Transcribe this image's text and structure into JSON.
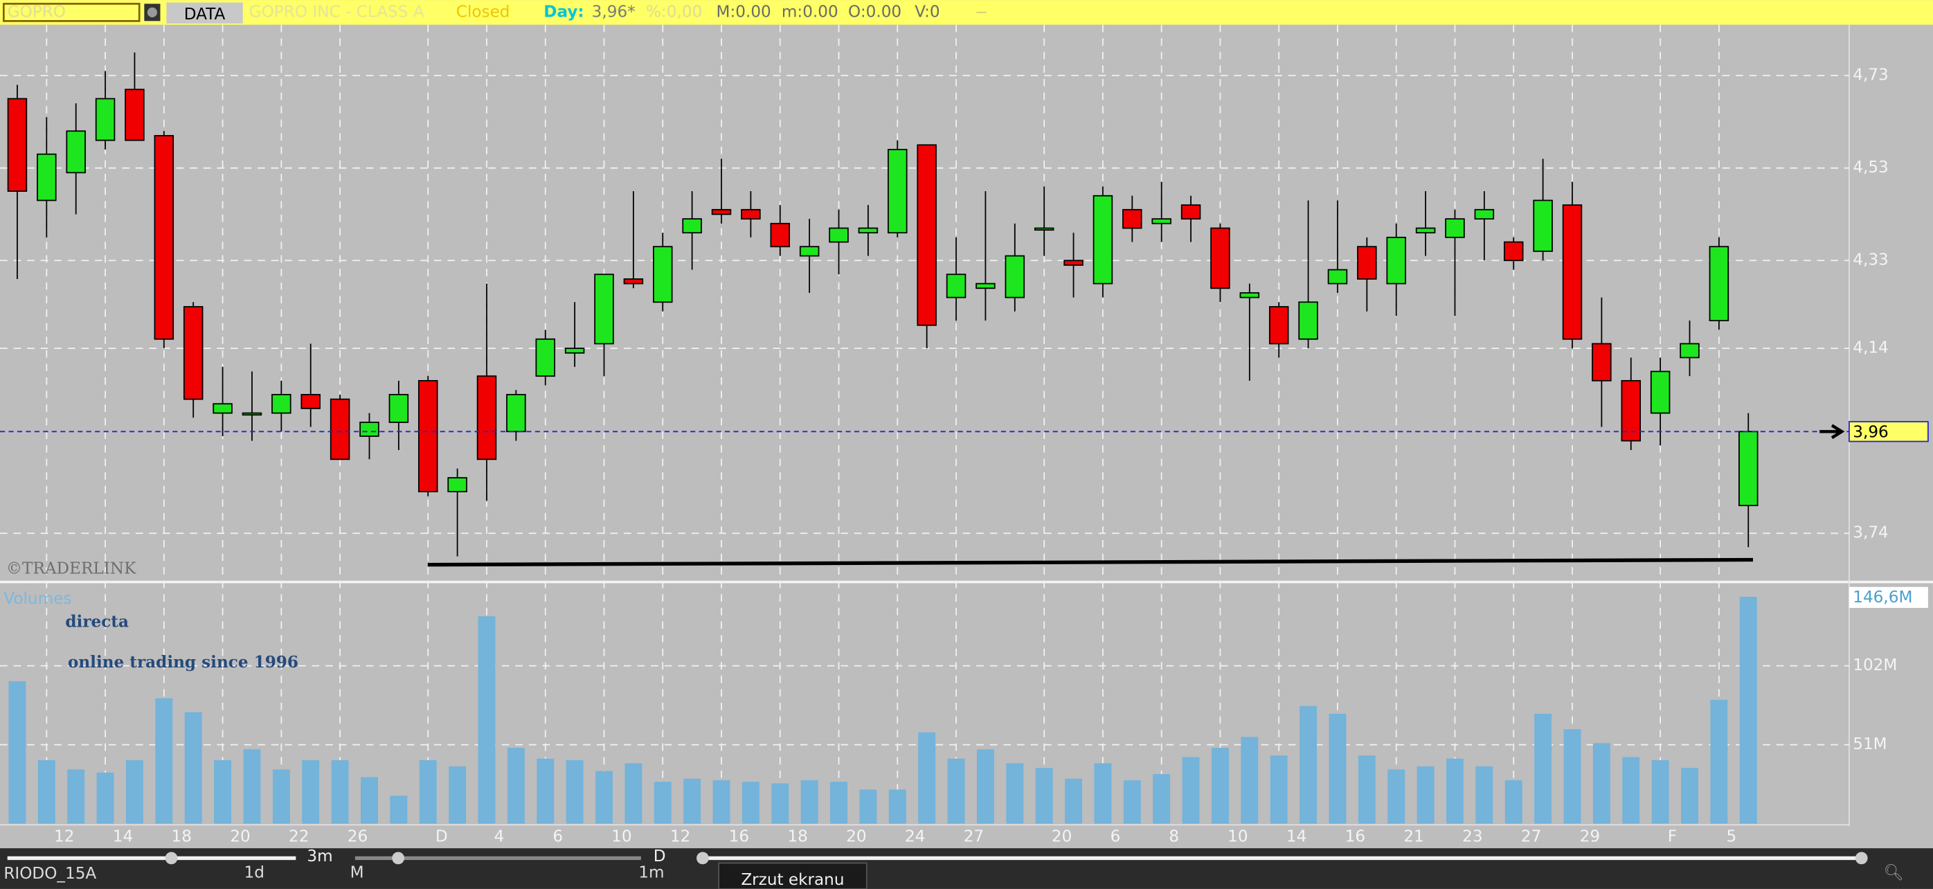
{
  "toolbar": {
    "symbol": "GOPRO",
    "button": "DATA",
    "name": "GOPRO INC - CLASS A",
    "status": "Closed",
    "day_label": "Day:",
    "price": "3,96*",
    "change": "%:0,00",
    "max": "M:0.00",
    "min": "m:0.00",
    "open": "O:0.00",
    "volume": "V:0"
  },
  "watermarks": {
    "traderlink": "©TRADERLINK",
    "brand": "directa",
    "slogan": "online trading since 1996"
  },
  "chart_data": [
    {
      "type": "candlestick",
      "open": [
        4.68,
        4.46,
        4.52,
        4.59,
        4.7,
        4.6,
        4.23,
        4.0,
        4.0,
        4.0,
        4.04,
        4.03,
        3.95,
        3.98,
        4.07,
        3.83,
        4.08,
        3.96,
        4.08,
        4.13,
        4.15,
        4.29,
        4.24,
        4.39,
        4.44,
        4.44,
        4.41,
        4.34,
        4.37,
        4.39,
        4.39,
        4.58,
        4.25,
        4.27,
        4.25,
        4.4,
        4.33,
        4.28,
        4.44,
        4.41,
        4.45,
        4.4,
        4.25,
        4.23,
        4.16,
        4.28,
        4.36,
        4.28,
        4.39,
        4.38,
        4.42,
        4.37,
        4.35,
        4.45,
        4.15,
        4.07,
        4.0,
        4.12,
        4.2,
        3.8
      ],
      "high": [
        4.71,
        4.64,
        4.67,
        4.74,
        4.78,
        4.61,
        4.24,
        4.1,
        4.09,
        4.07,
        4.15,
        4.04,
        4.0,
        4.07,
        4.08,
        3.88,
        4.28,
        4.05,
        4.18,
        4.24,
        4.3,
        4.48,
        4.39,
        4.48,
        4.55,
        4.48,
        4.45,
        4.42,
        4.44,
        4.45,
        4.59,
        4.58,
        4.38,
        4.48,
        4.41,
        4.49,
        4.39,
        4.49,
        4.47,
        4.5,
        4.47,
        4.41,
        4.28,
        4.24,
        4.46,
        4.46,
        4.38,
        4.41,
        4.48,
        4.44,
        4.48,
        4.38,
        4.55,
        4.5,
        4.25,
        4.12,
        4.12,
        4.2,
        4.38,
        4.0
      ],
      "low": [
        4.29,
        4.38,
        4.43,
        4.57,
        4.59,
        4.14,
        3.99,
        3.95,
        3.94,
        3.96,
        3.97,
        3.9,
        3.9,
        3.92,
        3.82,
        3.69,
        3.81,
        3.94,
        4.06,
        4.1,
        4.08,
        4.27,
        4.22,
        4.31,
        4.41,
        4.38,
        4.34,
        4.26,
        4.3,
        4.34,
        4.38,
        4.14,
        4.2,
        4.2,
        4.22,
        4.34,
        4.25,
        4.25,
        4.37,
        4.37,
        4.37,
        4.24,
        4.07,
        4.12,
        4.14,
        4.26,
        4.22,
        4.21,
        4.34,
        4.21,
        4.33,
        4.31,
        4.33,
        4.14,
        3.97,
        3.92,
        3.93,
        4.08,
        4.18,
        3.71
      ],
      "close": [
        4.48,
        4.56,
        4.61,
        4.68,
        4.59,
        4.16,
        4.03,
        4.02,
        4.0,
        4.04,
        4.01,
        3.9,
        3.98,
        4.04,
        3.83,
        3.86,
        3.9,
        4.04,
        4.16,
        4.14,
        4.3,
        4.28,
        4.36,
        4.42,
        4.43,
        4.42,
        4.36,
        4.36,
        4.4,
        4.4,
        4.57,
        4.19,
        4.3,
        4.28,
        4.34,
        4.4,
        4.32,
        4.47,
        4.4,
        4.42,
        4.42,
        4.27,
        4.26,
        4.15,
        4.24,
        4.31,
        4.29,
        4.38,
        4.4,
        4.42,
        4.44,
        4.33,
        4.46,
        4.16,
        4.07,
        3.94,
        4.09,
        4.15,
        4.36,
        3.96
      ],
      "up_color": "#1ee61e",
      "down_color": "#f00000",
      "ylim": [
        3.64,
        4.84
      ],
      "yticks": [
        {
          "value": 3.74,
          "label": "3,74"
        },
        {
          "value": 4.14,
          "label": "4,14"
        },
        {
          "value": 4.33,
          "label": "4,33"
        },
        {
          "value": 4.53,
          "label": "4,53"
        },
        {
          "value": 4.73,
          "label": "4,73"
        }
      ],
      "grid": true,
      "current_label": {
        "value": 3.96,
        "label": "3,96"
      }
    },
    {
      "type": "bar",
      "title": "Volumes",
      "categories": [
        null,
        "12",
        null,
        "14",
        null,
        "18",
        null,
        "20",
        null,
        "22",
        null,
        "26",
        null,
        null,
        "D",
        null,
        "4",
        null,
        "6",
        null,
        "10",
        null,
        "12",
        null,
        "16",
        null,
        "18",
        null,
        "20",
        null,
        "24",
        null,
        "27",
        null,
        null,
        "20",
        null,
        "6",
        null,
        "8",
        null,
        "10",
        null,
        "14",
        null,
        "16",
        null,
        "21",
        null,
        "23",
        null,
        "27",
        null,
        "29",
        null,
        null,
        "F",
        null,
        "5",
        null
      ],
      "values": [
        92,
        41,
        35,
        33,
        41,
        81,
        72,
        41,
        48,
        35,
        41,
        41,
        30,
        18,
        41,
        37,
        134,
        49,
        42,
        41,
        34,
        39,
        27,
        29,
        28,
        27,
        26,
        28,
        27,
        22,
        22,
        59,
        42,
        48,
        39,
        36,
        29,
        39,
        28,
        32,
        43,
        49,
        56,
        44,
        76,
        71,
        44,
        35,
        37,
        42,
        37,
        28,
        71,
        61,
        52,
        43,
        41,
        36,
        80,
        146.6
      ],
      "color": "#74b3da",
      "ylim": [
        0,
        154.6
      ],
      "yticks": [
        {
          "value": 51,
          "label": "51M"
        },
        {
          "value": 102,
          "label": "102M"
        }
      ],
      "grid": true,
      "current_label": {
        "value": 146.6,
        "label": "146,6M"
      }
    }
  ],
  "footer": {
    "range": "3m",
    "period": "D",
    "template": "RIODO_15A",
    "min_label": "1d",
    "mid_label": "M",
    "max_label": "1m",
    "tooltip": "Zrzut ekranu"
  }
}
